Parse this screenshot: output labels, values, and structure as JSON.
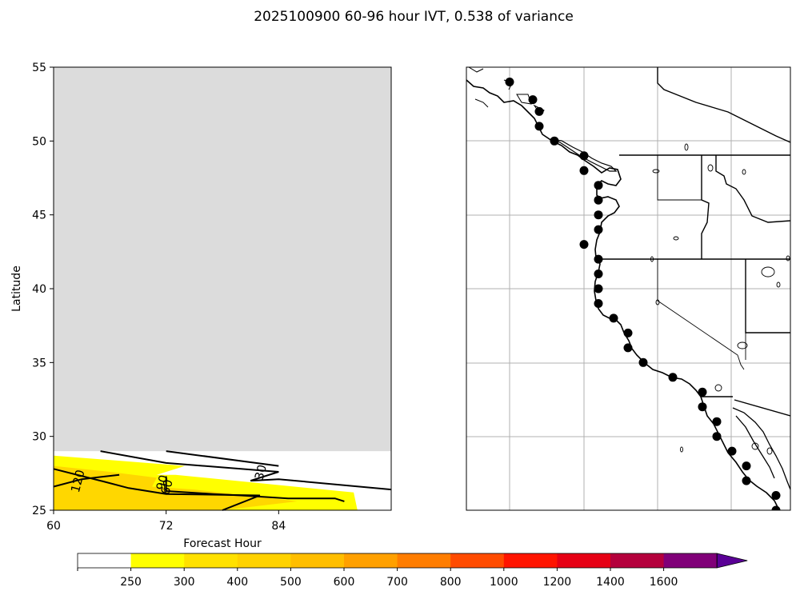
{
  "title": "2025100900 60-96 hour IVT, 0.538 of variance",
  "chart_data": [
    {
      "type": "contour",
      "xlabel": "Forecast Hour",
      "ylabel": "Latitude",
      "xlim": [
        60,
        96
      ],
      "ylim": [
        25,
        55
      ],
      "xticks": [
        60,
        72,
        84
      ],
      "yticks": [
        25,
        30,
        35,
        40,
        45,
        50,
        55
      ],
      "no_data_color": "#dcdcdc",
      "no_data_above_latitude": 29,
      "filled_regions": [
        {
          "level_range": [
            250,
            300
          ],
          "color": "#ffff00",
          "polygon": [
            [
              60,
              28.7
            ],
            [
              74,
              28
            ],
            [
              71,
              27.4
            ],
            [
              73,
              27.4
            ],
            [
              92,
              26.2
            ],
            [
              92.4,
              25
            ],
            [
              60,
              25
            ]
          ]
        },
        {
          "level_range": [
            300,
            400
          ],
          "color": "#ffd700",
          "polygon": [
            [
              60,
              28
            ],
            [
              66,
              27.6
            ],
            [
              71,
              27.2
            ],
            [
              70.5,
              26.6
            ],
            [
              75,
              26.4
            ],
            [
              86,
              25.6
            ],
            [
              78,
              25
            ],
            [
              60,
              25
            ]
          ]
        }
      ],
      "contour_lines": [
        {
          "label": "120",
          "label_at": [
            63,
            26.9
          ],
          "points": [
            [
              60,
              27.8
            ],
            [
              65,
              27
            ],
            [
              68,
              26.5
            ],
            [
              72,
              26.1
            ],
            [
              82,
              26
            ],
            [
              78,
              25
            ]
          ]
        },
        {
          "label": "90",
          "label_at": [
            72,
            26.8
          ],
          "points": [
            [
              60,
              26.6
            ],
            [
              63,
              27.1
            ],
            [
              67,
              27.4
            ]
          ]
        },
        {
          "label": "",
          "points": [
            [
              72,
              27.3
            ],
            [
              72,
              26.3
            ],
            [
              77,
              26.1
            ],
            [
              80,
              26
            ],
            [
              85,
              25.8
            ],
            [
              90,
              25.8
            ],
            [
              91,
              25.6
            ]
          ]
        },
        {
          "label": "60",
          "label_at": [
            72.5,
            26.5
          ],
          "points": [
            [
              72,
              27
            ]
          ]
        },
        {
          "label": "30",
          "label_at": [
            82.5,
            27.5
          ],
          "points": [
            [
              65,
              29
            ],
            [
              72,
              28.2
            ],
            [
              84,
              27.6
            ],
            [
              81,
              27
            ],
            [
              84,
              27.1
            ],
            [
              96,
              26.4
            ]
          ]
        },
        {
          "label": "",
          "points": [
            [
              72,
              29
            ],
            [
              84,
              28
            ]
          ]
        }
      ]
    },
    {
      "type": "map",
      "region": "US West Coast",
      "gridlines": true,
      "marker_color": "#000000",
      "points_lat": [
        54,
        52.8,
        52,
        51,
        50,
        49,
        48,
        47,
        46,
        45,
        44,
        43,
        42,
        41,
        40,
        39,
        38,
        37,
        36,
        35,
        34,
        33,
        32,
        31,
        30,
        29,
        28,
        27,
        26,
        25
      ]
    }
  ],
  "colorbar": {
    "levels": [
      "250",
      "300",
      "400",
      "500",
      "600",
      "700",
      "800",
      "1000",
      "1200",
      "1400",
      "1600"
    ],
    "colors": [
      "#ffffff",
      "#ffff00",
      "#ffe100",
      "#ffd200",
      "#ffbe00",
      "#ffa000",
      "#ff7d00",
      "#ff4b00",
      "#ff1400",
      "#e60014",
      "#b4003c",
      "#800078",
      "#5a0096"
    ],
    "extend": "max"
  }
}
